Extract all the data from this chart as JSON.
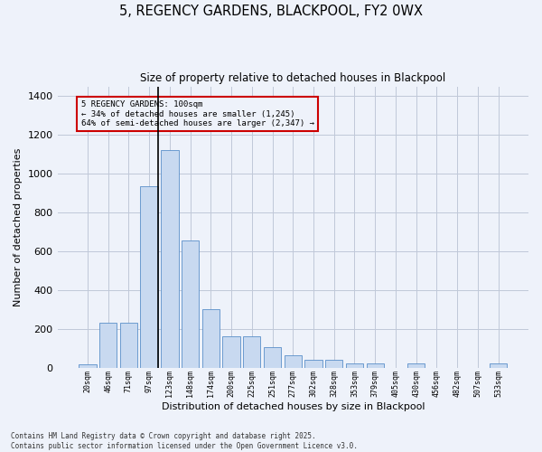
{
  "title": "5, REGENCY GARDENS, BLACKPOOL, FY2 0WX",
  "subtitle": "Size of property relative to detached houses in Blackpool",
  "xlabel": "Distribution of detached houses by size in Blackpool",
  "ylabel": "Number of detached properties",
  "bar_color": "#c8d9f0",
  "bar_edge_color": "#5b8fc9",
  "background_color": "#eef2fa",
  "annotation_line1": "5 REGENCY GARDENS: 100sqm",
  "annotation_line2": "← 34% of detached houses are smaller (1,245)",
  "annotation_line3": "64% of semi-detached houses are larger (2,347) →",
  "annotation_box_color": "#cc0000",
  "categories": [
    "20sqm",
    "46sqm",
    "71sqm",
    "97sqm",
    "123sqm",
    "148sqm",
    "174sqm",
    "200sqm",
    "225sqm",
    "251sqm",
    "277sqm",
    "302sqm",
    "328sqm",
    "353sqm",
    "379sqm",
    "405sqm",
    "430sqm",
    "456sqm",
    "482sqm",
    "507sqm",
    "533sqm"
  ],
  "values": [
    15,
    230,
    230,
    935,
    1120,
    655,
    300,
    160,
    160,
    105,
    65,
    40,
    40,
    20,
    20,
    0,
    20,
    0,
    0,
    0,
    20
  ],
  "ylim": [
    0,
    1450
  ],
  "yticks": [
    0,
    200,
    400,
    600,
    800,
    1000,
    1200,
    1400
  ],
  "footnote": "Contains HM Land Registry data © Crown copyright and database right 2025.\nContains public sector information licensed under the Open Government Licence v3.0.",
  "grid_color": "#c0c8d8"
}
